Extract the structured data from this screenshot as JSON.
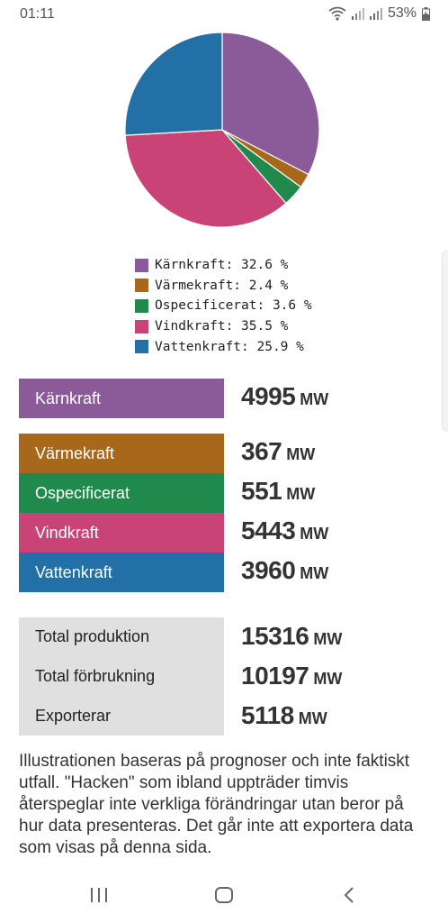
{
  "status": {
    "time": "01:11",
    "battery": "53%"
  },
  "chart_data": {
    "type": "pie",
    "categories": [
      "Kärnkraft",
      "Värmekraft",
      "Ospecificerat",
      "Vindkraft",
      "Vattenkraft"
    ],
    "values": [
      32.6,
      2.4,
      3.6,
      35.5,
      25.9
    ],
    "colors": [
      "#8a5a99",
      "#a8681c",
      "#1f8a4c",
      "#c94377",
      "#2370a6"
    ],
    "legend_placement": "bottom",
    "legend": [
      "Kärnkraft: 32.6 %",
      "Värmekraft: 2.4 %",
      "Ospecificerat: 3.6 %",
      "Vindkraft: 35.5 %",
      "Vattenkraft: 25.9 %"
    ]
  },
  "production": [
    {
      "label": "Kärnkraft",
      "value": "4995",
      "unit": "MW",
      "color": "#8a5a99"
    },
    {
      "label": "Värmekraft",
      "value": "367",
      "unit": "MW",
      "color": "#a8681c"
    },
    {
      "label": "Ospecificerat",
      "value": "551",
      "unit": "MW",
      "color": "#1f8a4c"
    },
    {
      "label": "Vindkraft",
      "value": "5443",
      "unit": "MW",
      "color": "#c94377"
    },
    {
      "label": "Vattenkraft",
      "value": "3960",
      "unit": "MW",
      "color": "#2370a6"
    }
  ],
  "totals": [
    {
      "label": "Total produktion",
      "value": "15316",
      "unit": "MW"
    },
    {
      "label": "Total förbrukning",
      "value": "10197",
      "unit": "MW"
    },
    {
      "label": "Exporterar",
      "value": "5118",
      "unit": "MW"
    }
  ],
  "note": "Illustrationen baseras på prognoser och inte faktiskt utfall. \"Hacken\" som ibland uppträder timvis återspeglar inte verkliga förändringar utan beror på hur data presenteras. Det går inte att exportera data som visas på denna sida."
}
